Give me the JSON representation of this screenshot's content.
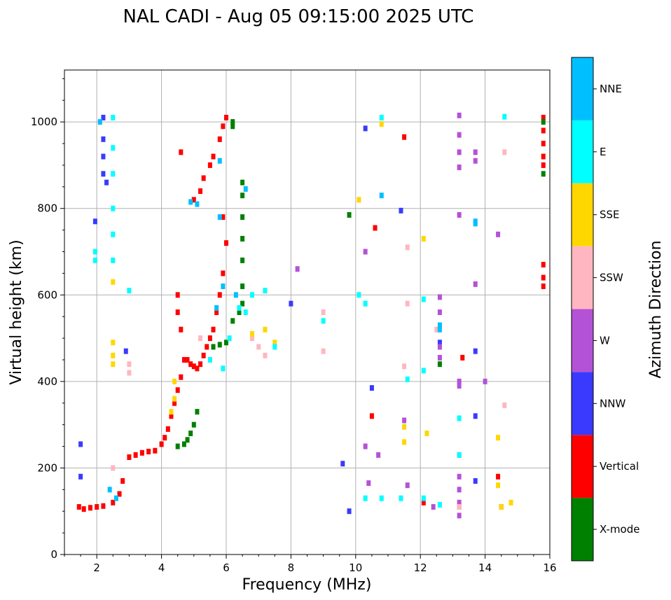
{
  "chart_data": {
    "type": "scatter",
    "title": "NAL CADI - Aug 05 09:15:00 2025 UTC",
    "xlabel": "Frequency (MHz)",
    "ylabel": "Virtual height (km)",
    "xlim": [
      1,
      16
    ],
    "ylim": [
      0,
      1120
    ],
    "x_ticks": [
      2,
      4,
      6,
      8,
      10,
      12,
      14,
      16
    ],
    "y_ticks": [
      0,
      200,
      400,
      600,
      800,
      1000
    ],
    "grid": true,
    "colorbar": {
      "label": "Azimuth Direction",
      "categories": [
        {
          "name": "X-mode",
          "color": "#008000"
        },
        {
          "name": "Vertical",
          "color": "#ff0000"
        },
        {
          "name": "NNW",
          "color": "#3a3aff"
        },
        {
          "name": "W",
          "color": "#b452d6"
        },
        {
          "name": "SSW",
          "color": "#ffb6c1"
        },
        {
          "name": "SSE",
          "color": "#ffd700"
        },
        {
          "name": "E",
          "color": "#00ffff"
        },
        {
          "name": "NNE",
          "color": "#00bfff"
        }
      ]
    },
    "series": [
      {
        "name": "Vertical",
        "points": [
          [
            1.45,
            110
          ],
          [
            1.6,
            105
          ],
          [
            1.8,
            108
          ],
          [
            2.0,
            110
          ],
          [
            2.2,
            112
          ],
          [
            2.5,
            120
          ],
          [
            2.7,
            140
          ],
          [
            2.8,
            170
          ],
          [
            3.0,
            225
          ],
          [
            3.2,
            230
          ],
          [
            3.4,
            235
          ],
          [
            3.6,
            238
          ],
          [
            3.8,
            240
          ],
          [
            4.0,
            255
          ],
          [
            4.1,
            270
          ],
          [
            4.2,
            290
          ],
          [
            4.3,
            320
          ],
          [
            4.4,
            350
          ],
          [
            4.5,
            380
          ],
          [
            4.6,
            410
          ],
          [
            4.5,
            600
          ],
          [
            4.5,
            560
          ],
          [
            4.6,
            520
          ],
          [
            4.7,
            450
          ],
          [
            4.8,
            450
          ],
          [
            4.9,
            440
          ],
          [
            5.0,
            435
          ],
          [
            5.1,
            430
          ],
          [
            5.2,
            440
          ],
          [
            5.3,
            460
          ],
          [
            5.4,
            480
          ],
          [
            5.5,
            500
          ],
          [
            5.6,
            520
          ],
          [
            5.7,
            560
          ],
          [
            5.8,
            600
          ],
          [
            5.9,
            650
          ],
          [
            6.0,
            720
          ],
          [
            5.9,
            780
          ],
          [
            5.0,
            820
          ],
          [
            5.2,
            840
          ],
          [
            5.3,
            870
          ],
          [
            5.5,
            900
          ],
          [
            5.6,
            920
          ],
          [
            5.8,
            960
          ],
          [
            5.9,
            990
          ],
          [
            6.0,
            1010
          ],
          [
            4.6,
            930
          ],
          [
            15.8,
            1010
          ],
          [
            15.8,
            980
          ],
          [
            15.8,
            950
          ],
          [
            15.8,
            920
          ],
          [
            15.8,
            900
          ],
          [
            15.8,
            670
          ],
          [
            15.8,
            640
          ],
          [
            15.8,
            620
          ],
          [
            10.5,
            320
          ],
          [
            12.1,
            120
          ],
          [
            13.2,
            110
          ],
          [
            14.4,
            180
          ],
          [
            14.5,
            110
          ],
          [
            13.3,
            455
          ],
          [
            10.6,
            755
          ],
          [
            11.5,
            965
          ]
        ]
      },
      {
        "name": "X-mode",
        "points": [
          [
            4.5,
            250
          ],
          [
            4.7,
            255
          ],
          [
            4.8,
            265
          ],
          [
            4.9,
            280
          ],
          [
            5.0,
            300
          ],
          [
            5.1,
            330
          ],
          [
            5.6,
            480
          ],
          [
            5.8,
            485
          ],
          [
            6.0,
            490
          ],
          [
            6.2,
            540
          ],
          [
            6.4,
            560
          ],
          [
            6.5,
            580
          ],
          [
            6.5,
            620
          ],
          [
            6.5,
            680
          ],
          [
            6.5,
            730
          ],
          [
            6.5,
            780
          ],
          [
            6.5,
            830
          ],
          [
            6.5,
            860
          ],
          [
            6.2,
            990
          ],
          [
            6.2,
            1000
          ],
          [
            9.8,
            785
          ],
          [
            12.6,
            440
          ],
          [
            15.8,
            880
          ],
          [
            15.8,
            1000
          ]
        ]
      },
      {
        "name": "NNW",
        "points": [
          [
            1.5,
            255
          ],
          [
            1.5,
            180
          ],
          [
            2.2,
            1010
          ],
          [
            2.2,
            960
          ],
          [
            2.2,
            920
          ],
          [
            2.2,
            880
          ],
          [
            2.3,
            860
          ],
          [
            1.95,
            770
          ],
          [
            2.9,
            470
          ],
          [
            8.0,
            580
          ],
          [
            9.6,
            210
          ],
          [
            9.8,
            100
          ],
          [
            10.3,
            985
          ],
          [
            10.5,
            385
          ],
          [
            12.6,
            490
          ],
          [
            13.7,
            470
          ],
          [
            13.7,
            320
          ],
          [
            13.7,
            170
          ],
          [
            11.4,
            795
          ]
        ]
      },
      {
        "name": "W",
        "points": [
          [
            10.3,
            700
          ],
          [
            10.3,
            250
          ],
          [
            10.4,
            165
          ],
          [
            10.7,
            230
          ],
          [
            11.5,
            310
          ],
          [
            11.6,
            160
          ],
          [
            12.6,
            595
          ],
          [
            12.6,
            560
          ],
          [
            12.6,
            480
          ],
          [
            12.6,
            455
          ],
          [
            13.2,
            1015
          ],
          [
            13.2,
            970
          ],
          [
            13.2,
            930
          ],
          [
            13.2,
            895
          ],
          [
            13.2,
            785
          ],
          [
            13.2,
            400
          ],
          [
            13.2,
            390
          ],
          [
            13.2,
            230
          ],
          [
            13.2,
            180
          ],
          [
            13.2,
            150
          ],
          [
            13.2,
            120
          ],
          [
            13.2,
            90
          ],
          [
            13.7,
            930
          ],
          [
            13.7,
            910
          ],
          [
            13.7,
            625
          ],
          [
            14.0,
            400
          ],
          [
            14.4,
            740
          ],
          [
            12.4,
            110
          ],
          [
            8.2,
            660
          ]
        ]
      },
      {
        "name": "SSW",
        "points": [
          [
            2.5,
            200
          ],
          [
            3.0,
            440
          ],
          [
            3.0,
            420
          ],
          [
            5.2,
            500
          ],
          [
            6.8,
            500
          ],
          [
            7.0,
            480
          ],
          [
            7.2,
            460
          ],
          [
            9.0,
            560
          ],
          [
            9.0,
            470
          ],
          [
            11.6,
            710
          ],
          [
            11.6,
            580
          ],
          [
            12.5,
            520
          ],
          [
            14.6,
            930
          ],
          [
            14.6,
            345
          ],
          [
            13.2,
            110
          ],
          [
            11.5,
            435
          ]
        ]
      },
      {
        "name": "SSE",
        "points": [
          [
            2.5,
            490
          ],
          [
            2.5,
            460
          ],
          [
            2.5,
            440
          ],
          [
            2.5,
            630
          ],
          [
            4.4,
            400
          ],
          [
            4.4,
            360
          ],
          [
            4.3,
            330
          ],
          [
            6.8,
            510
          ],
          [
            7.2,
            520
          ],
          [
            7.5,
            490
          ],
          [
            10.8,
            995
          ],
          [
            11.5,
            295
          ],
          [
            11.5,
            260
          ],
          [
            12.1,
            730
          ],
          [
            12.2,
            280
          ],
          [
            14.4,
            270
          ],
          [
            14.4,
            160
          ],
          [
            14.5,
            110
          ],
          [
            14.8,
            120
          ],
          [
            10.1,
            820
          ]
        ]
      },
      {
        "name": "E",
        "points": [
          [
            2.5,
            1010
          ],
          [
            2.5,
            940
          ],
          [
            2.5,
            880
          ],
          [
            2.5,
            800
          ],
          [
            2.5,
            740
          ],
          [
            2.5,
            680
          ],
          [
            1.95,
            700
          ],
          [
            1.95,
            680
          ],
          [
            3.0,
            610
          ],
          [
            5.5,
            450
          ],
          [
            5.9,
            430
          ],
          [
            6.1,
            500
          ],
          [
            6.4,
            570
          ],
          [
            6.6,
            560
          ],
          [
            6.8,
            600
          ],
          [
            7.2,
            610
          ],
          [
            7.5,
            480
          ],
          [
            9.0,
            540
          ],
          [
            10.1,
            600
          ],
          [
            10.3,
            580
          ],
          [
            10.3,
            130
          ],
          [
            10.8,
            1010
          ],
          [
            10.8,
            130
          ],
          [
            11.4,
            130
          ],
          [
            11.6,
            405
          ],
          [
            12.1,
            590
          ],
          [
            12.1,
            425
          ],
          [
            12.1,
            130
          ],
          [
            12.6,
            115
          ],
          [
            13.2,
            315
          ],
          [
            13.2,
            230
          ],
          [
            14.6,
            1012
          ]
        ]
      },
      {
        "name": "NNE",
        "points": [
          [
            2.1,
            1000
          ],
          [
            2.4,
            150
          ],
          [
            2.6,
            130
          ],
          [
            4.9,
            815
          ],
          [
            5.1,
            810
          ],
          [
            5.8,
            910
          ],
          [
            5.8,
            780
          ],
          [
            5.9,
            620
          ],
          [
            5.7,
            570
          ],
          [
            6.6,
            845
          ],
          [
            6.3,
            600
          ],
          [
            10.8,
            830
          ],
          [
            12.6,
            520
          ],
          [
            12.6,
            530
          ],
          [
            13.7,
            770
          ],
          [
            13.7,
            765
          ]
        ]
      }
    ]
  }
}
